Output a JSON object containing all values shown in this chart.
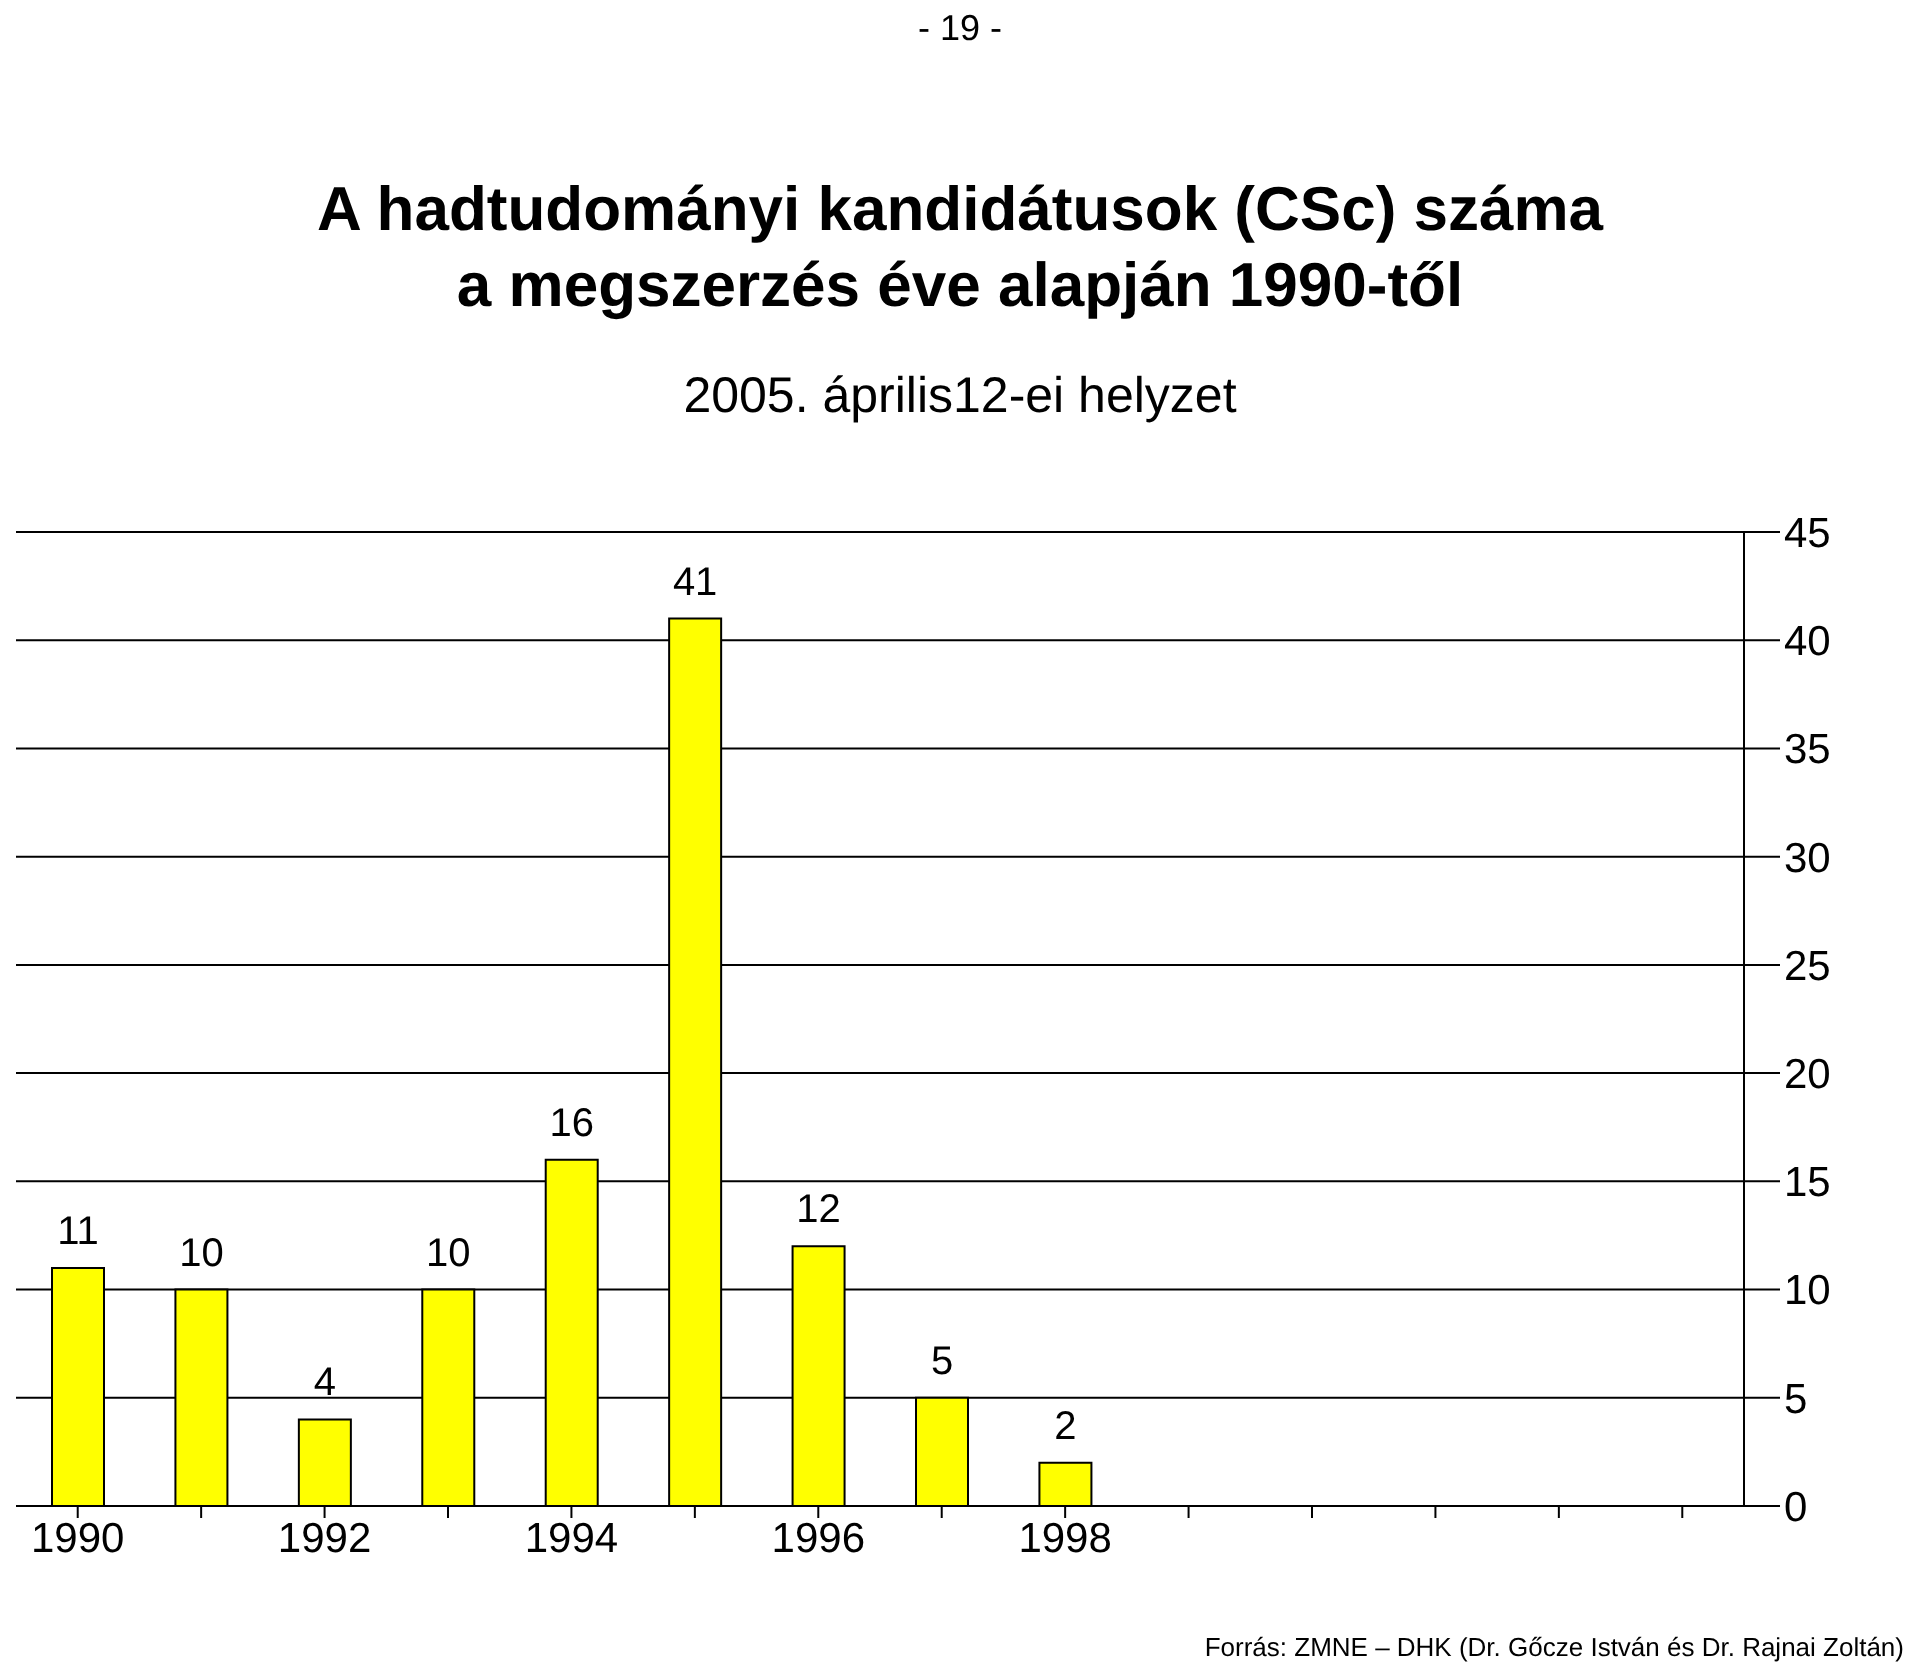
{
  "chart_data": {
    "type": "bar",
    "title": "A hadtudományi kandidátusok (CSc) száma\na megszerzés éve alapján 1990-től",
    "subtitle": "2005. április12-ei helyzet",
    "categories": [
      "1990",
      null,
      "1992",
      null,
      "1994",
      null,
      "1996",
      null,
      "1998",
      null,
      null,
      null,
      null,
      null
    ],
    "values": [
      11,
      10,
      4,
      10,
      16,
      41,
      12,
      5,
      2,
      null,
      null,
      null,
      null,
      null
    ],
    "color": "#ffff00",
    "ylim": [
      0,
      45
    ],
    "yticks": [
      0,
      5,
      10,
      15,
      20,
      25,
      30,
      35,
      40,
      45
    ],
    "grid": "y",
    "data_labels": true,
    "annotations": [
      "- 19 -",
      "Forrás: ZMNE – DHK (Dr. Gőcze István és Dr. Rajnai Zoltán)"
    ]
  }
}
